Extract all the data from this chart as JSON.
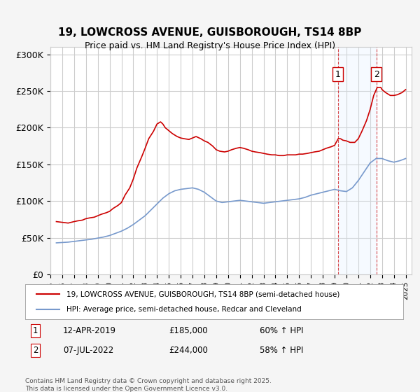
{
  "title": "19, LOWCROSS AVENUE, GUISBOROUGH, TS14 8BP",
  "subtitle": "Price paid vs. HM Land Registry's House Price Index (HPI)",
  "xlabel": "",
  "ylabel": "",
  "ylim": [
    0,
    310000
  ],
  "yticks": [
    0,
    50000,
    100000,
    150000,
    200000,
    250000,
    300000
  ],
  "ytick_labels": [
    "£0",
    "£50K",
    "£100K",
    "£150K",
    "£200K",
    "£250K",
    "£300K"
  ],
  "background_color": "#f5f5f5",
  "plot_bg": "#ffffff",
  "grid_color": "#cccccc",
  "red_color": "#cc0000",
  "blue_color": "#7799cc",
  "marker1_date": "12-APR-2019",
  "marker1_price": "£185,000",
  "marker1_hpi": "60% ↑ HPI",
  "marker1_x": 2019.28,
  "marker2_date": "07-JUL-2022",
  "marker2_price": "£244,000",
  "marker2_hpi": "58% ↑ HPI",
  "marker2_x": 2022.52,
  "shade_color": "#ddeeff",
  "legend_line1": "19, LOWCROSS AVENUE, GUISBOROUGH, TS14 8BP (semi-detached house)",
  "legend_line2": "HPI: Average price, semi-detached house, Redcar and Cleveland",
  "footer": "Contains HM Land Registry data © Crown copyright and database right 2025.\nThis data is licensed under the Open Government Licence v3.0.",
  "red_data": {
    "x": [
      1995.5,
      1996.0,
      1996.5,
      1997.0,
      1997.3,
      1997.7,
      1998.0,
      1998.3,
      1998.7,
      1999.0,
      1999.3,
      1999.7,
      2000.0,
      2000.3,
      2000.7,
      2001.0,
      2001.3,
      2001.7,
      2002.0,
      2002.3,
      2002.7,
      2003.0,
      2003.3,
      2003.7,
      2004.0,
      2004.3,
      2004.5,
      2004.7,
      2005.0,
      2005.3,
      2005.7,
      2006.0,
      2006.3,
      2006.7,
      2007.0,
      2007.3,
      2007.7,
      2008.0,
      2008.3,
      2008.7,
      2009.0,
      2009.3,
      2009.7,
      2010.0,
      2010.3,
      2010.7,
      2011.0,
      2011.3,
      2011.7,
      2012.0,
      2012.3,
      2012.7,
      2013.0,
      2013.3,
      2013.7,
      2014.0,
      2014.3,
      2014.7,
      2015.0,
      2015.3,
      2015.7,
      2016.0,
      2016.3,
      2016.7,
      2017.0,
      2017.3,
      2017.7,
      2018.0,
      2018.3,
      2018.7,
      2019.0,
      2019.3,
      2019.5,
      2019.7,
      2020.0,
      2020.3,
      2020.7,
      2021.0,
      2021.3,
      2021.7,
      2022.0,
      2022.3,
      2022.6,
      2022.9,
      2023.0,
      2023.3,
      2023.7,
      2024.0,
      2024.3,
      2024.7,
      2025.0
    ],
    "y": [
      72000,
      71000,
      70000,
      72000,
      73000,
      74000,
      76000,
      77000,
      78000,
      80000,
      82000,
      84000,
      86000,
      90000,
      94000,
      98000,
      108000,
      118000,
      130000,
      145000,
      160000,
      172000,
      185000,
      195000,
      205000,
      208000,
      205000,
      200000,
      196000,
      192000,
      188000,
      186000,
      185000,
      184000,
      186000,
      188000,
      185000,
      182000,
      180000,
      175000,
      170000,
      168000,
      167000,
      168000,
      170000,
      172000,
      173000,
      172000,
      170000,
      168000,
      167000,
      166000,
      165000,
      164000,
      163000,
      163000,
      162000,
      162000,
      163000,
      163000,
      163000,
      164000,
      164000,
      165000,
      166000,
      167000,
      168000,
      170000,
      172000,
      174000,
      176000,
      185000,
      185000,
      183000,
      182000,
      180000,
      180000,
      185000,
      195000,
      210000,
      225000,
      244000,
      255000,
      255000,
      252000,
      248000,
      244000,
      244000,
      245000,
      248000,
      252000
    ]
  },
  "blue_data": {
    "x": [
      1995.5,
      1996.0,
      1996.5,
      1997.0,
      1997.5,
      1998.0,
      1998.5,
      1999.0,
      1999.5,
      2000.0,
      2000.5,
      2001.0,
      2001.5,
      2002.0,
      2002.5,
      2003.0,
      2003.5,
      2004.0,
      2004.5,
      2005.0,
      2005.5,
      2006.0,
      2006.5,
      2007.0,
      2007.5,
      2008.0,
      2008.5,
      2009.0,
      2009.5,
      2010.0,
      2010.5,
      2011.0,
      2011.5,
      2012.0,
      2012.5,
      2013.0,
      2013.5,
      2014.0,
      2014.5,
      2015.0,
      2015.5,
      2016.0,
      2016.5,
      2017.0,
      2017.5,
      2018.0,
      2018.5,
      2019.0,
      2019.5,
      2020.0,
      2020.5,
      2021.0,
      2021.5,
      2022.0,
      2022.5,
      2023.0,
      2023.5,
      2024.0,
      2024.5,
      2025.0
    ],
    "y": [
      43000,
      43500,
      44000,
      45000,
      46000,
      47000,
      48000,
      49500,
      51000,
      53000,
      56000,
      59000,
      63000,
      68000,
      74000,
      80000,
      88000,
      96000,
      104000,
      110000,
      114000,
      116000,
      117000,
      118000,
      116000,
      112000,
      106000,
      100000,
      98000,
      99000,
      100000,
      101000,
      100000,
      99000,
      98000,
      97000,
      98000,
      99000,
      100000,
      101000,
      102000,
      103000,
      105000,
      108000,
      110000,
      112000,
      114000,
      116000,
      114000,
      113000,
      118000,
      128000,
      140000,
      152000,
      158000,
      158000,
      155000,
      153000,
      155000,
      158000
    ]
  }
}
